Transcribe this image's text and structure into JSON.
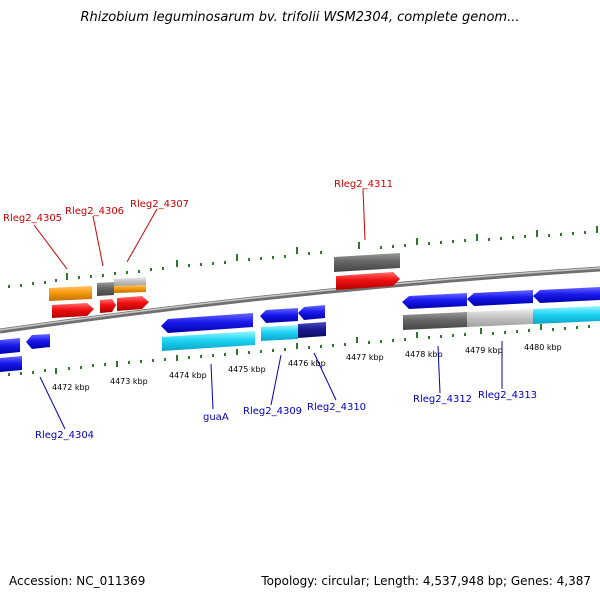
{
  "title": "Rhizobium leguminosarum bv. trifolii WSM2304, complete genom...",
  "footer": {
    "accession": "Accession: NC_011369",
    "summary": "Topology: circular; Length: 4,537,948 bp; Genes: 4,387"
  },
  "colors": {
    "plus_strand_label": "#cc0000",
    "minus_strand_label": "#0000bb",
    "backbone": "#888888",
    "tick": "#2a7a2a"
  },
  "scale_labels": [
    "4472 kbp",
    "4473 kbp",
    "4474 kbp",
    "4475 kbp",
    "4476 kbp",
    "4477 kbp",
    "4478 kbp",
    "4479 kbp",
    "4480 kbp"
  ],
  "gene_labels_plus": [
    "Rleg2_4305",
    "Rleg2_4306",
    "Rleg2_4307",
    "Rleg2_4311"
  ],
  "gene_labels_minus": [
    "Rleg2_4304",
    "guaA",
    "Rleg2_4309",
    "Rleg2_4310",
    "Rleg2_4312",
    "Rleg2_4313"
  ]
}
